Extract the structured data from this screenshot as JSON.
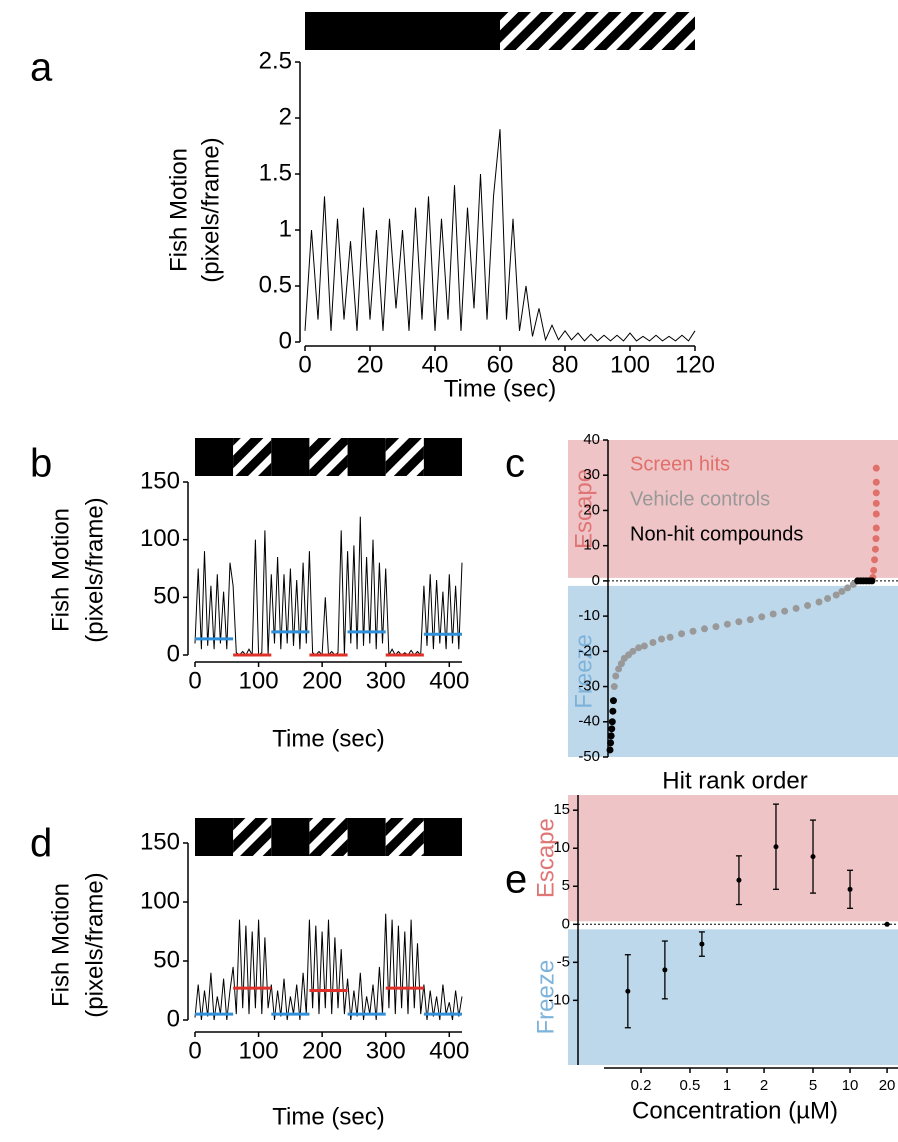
{
  "chart_data": [
    {
      "type": "line",
      "label": "a",
      "ylabel": [
        "Fish Motion",
        "(pixels/frame)"
      ],
      "xlabel": "Time (sec)",
      "color": "#000000",
      "xlim": [
        0,
        120
      ],
      "xticks": [
        0,
        20,
        40,
        60,
        80,
        100,
        120
      ],
      "ylim": [
        0,
        2.5
      ],
      "yticks": [
        0,
        0.5,
        1,
        1.5,
        2,
        2.5
      ],
      "stimulus": [
        {
          "x": [
            0,
            60
          ],
          "pattern": "solid"
        },
        {
          "x": [
            60,
            120
          ],
          "pattern": "striped"
        }
      ],
      "x": [
        0,
        2,
        4,
        6,
        8,
        10,
        12,
        14,
        16,
        18,
        20,
        22,
        24,
        26,
        28,
        30,
        32,
        34,
        36,
        38,
        40,
        42,
        44,
        46,
        48,
        50,
        52,
        54,
        56,
        58,
        60,
        62,
        64,
        66,
        68,
        70,
        72,
        74,
        76,
        78,
        80,
        82,
        84,
        86,
        88,
        90,
        92,
        94,
        96,
        98,
        100,
        102,
        104,
        106,
        108,
        110,
        112,
        114,
        116,
        118,
        120
      ],
      "values": [
        0.1,
        1.0,
        0.2,
        1.3,
        0.1,
        1.1,
        0.2,
        0.9,
        0.1,
        1.2,
        0.2,
        1.0,
        0.1,
        1.1,
        0.3,
        1.0,
        0.1,
        1.2,
        0.2,
        1.3,
        0.1,
        1.1,
        0.2,
        1.4,
        0.1,
        1.2,
        0.3,
        1.5,
        0.2,
        1.3,
        1.9,
        0.2,
        1.1,
        0.1,
        0.5,
        0.05,
        0.3,
        0.02,
        0.15,
        0.02,
        0.1,
        0.02,
        0.08,
        0.01,
        0.07,
        0.01,
        0.06,
        0.01,
        0.06,
        0.01,
        0.08,
        0.01,
        0.05,
        0.01,
        0.06,
        0.01,
        0.05,
        0.01,
        0.06,
        0.01,
        0.1
      ]
    },
    {
      "type": "line",
      "label": "b",
      "ylabel": [
        "Fish Motion",
        "(pixels/frame)"
      ],
      "xlabel": "Time (sec)",
      "color": "#000000",
      "xlim": [
        0,
        420
      ],
      "xticks": [
        0,
        100,
        200,
        300,
        400
      ],
      "ylim": [
        0,
        150
      ],
      "yticks": [
        0,
        50,
        100,
        150
      ],
      "stimulus": [
        {
          "x": [
            0,
            60
          ],
          "pattern": "solid"
        },
        {
          "x": [
            60,
            120
          ],
          "pattern": "striped"
        },
        {
          "x": [
            120,
            180
          ],
          "pattern": "solid"
        },
        {
          "x": [
            180,
            240
          ],
          "pattern": "striped"
        },
        {
          "x": [
            240,
            300
          ],
          "pattern": "solid"
        },
        {
          "x": [
            300,
            360
          ],
          "pattern": "striped"
        },
        {
          "x": [
            360,
            420
          ],
          "pattern": "solid"
        }
      ],
      "mean_lines": [
        {
          "x": [
            0,
            60
          ],
          "value": 14,
          "color": "#2f8fd8"
        },
        {
          "x": [
            60,
            120
          ],
          "value": 0,
          "color": "#e0302a"
        },
        {
          "x": [
            120,
            180
          ],
          "value": 20,
          "color": "#2f8fd8"
        },
        {
          "x": [
            180,
            240
          ],
          "value": 0,
          "color": "#e0302a"
        },
        {
          "x": [
            240,
            300
          ],
          "value": 20,
          "color": "#2f8fd8"
        },
        {
          "x": [
            300,
            360
          ],
          "value": 0,
          "color": "#e0302a"
        },
        {
          "x": [
            360,
            420
          ],
          "value": 18,
          "color": "#2f8fd8"
        }
      ],
      "x": [
        0,
        5,
        10,
        15,
        20,
        25,
        30,
        35,
        40,
        45,
        50,
        55,
        60,
        65,
        70,
        75,
        80,
        85,
        90,
        95,
        100,
        105,
        110,
        115,
        120,
        125,
        130,
        135,
        140,
        145,
        150,
        155,
        160,
        165,
        170,
        175,
        180,
        185,
        190,
        195,
        200,
        205,
        210,
        215,
        220,
        225,
        230,
        235,
        240,
        245,
        250,
        255,
        260,
        265,
        270,
        275,
        280,
        285,
        290,
        295,
        300,
        305,
        310,
        315,
        320,
        325,
        330,
        335,
        340,
        345,
        350,
        355,
        360,
        365,
        370,
        375,
        380,
        385,
        390,
        395,
        400,
        405,
        410,
        415,
        420
      ],
      "values": [
        10,
        75,
        5,
        90,
        8,
        60,
        5,
        70,
        10,
        55,
        5,
        80,
        60,
        2,
        0,
        3,
        0,
        5,
        0,
        100,
        0,
        2,
        108,
        0,
        70,
        10,
        85,
        5,
        70,
        10,
        75,
        8,
        65,
        5,
        80,
        10,
        90,
        2,
        0,
        3,
        0,
        50,
        0,
        3,
        0,
        2,
        108,
        0,
        90,
        10,
        95,
        5,
        120,
        8,
        85,
        10,
        100,
        5,
        80,
        10,
        75,
        0,
        5,
        0,
        3,
        0,
        2,
        0,
        4,
        0,
        3,
        0,
        60,
        8,
        70,
        5,
        65,
        10,
        55,
        5,
        70,
        10,
        60,
        5,
        80
      ]
    },
    {
      "type": "scatter",
      "label": "c",
      "xlabel": "Hit rank order",
      "legend": "upper left",
      "refline": 0,
      "xlim": [
        0,
        95
      ],
      "ylim": [
        -50,
        40
      ],
      "yticks": [
        -50,
        -40,
        -30,
        -20,
        -10,
        0,
        10,
        20,
        30,
        40
      ],
      "regions": [
        {
          "label": "Escape",
          "range": [
            0,
            40
          ],
          "color": "#efc4c6",
          "text_color": "#e07575"
        },
        {
          "label": "Freeze",
          "range": [
            -50,
            0
          ],
          "color": "#bdd8eb",
          "text_color": "#7db3da"
        }
      ],
      "series": [
        {
          "name": "Screen hits",
          "color": "#e0706a",
          "x": [
            91.8,
            92.1,
            92.4,
            92.7,
            92.9,
            93,
            93,
            93,
            93,
            93,
            93
          ],
          "values": [
            1,
            3,
            6,
            9,
            12,
            15,
            19,
            22,
            25,
            28,
            32
          ]
        },
        {
          "name": "Vehicle controls",
          "color": "#999999",
          "x": [
            1.5,
            2,
            3,
            4,
            5,
            6.5,
            8,
            10,
            12,
            15,
            18,
            21,
            25,
            29,
            33,
            37,
            41,
            45,
            49,
            53,
            57,
            61,
            65,
            69,
            73,
            76,
            79,
            81,
            83,
            85,
            86.5
          ],
          "values": [
            -30,
            -27,
            -25,
            -23.5,
            -22,
            -21,
            -20,
            -19,
            -18.5,
            -17.5,
            -16.5,
            -16,
            -15,
            -14.3,
            -13.6,
            -13,
            -12.3,
            -11.6,
            -11,
            -10.2,
            -9.4,
            -8.6,
            -7.8,
            -7,
            -6,
            -5,
            -4,
            -3,
            -2,
            -1,
            0
          ]
        },
        {
          "name": "Non-hit compounds",
          "color": "#000000",
          "x": [
            0,
            0.2,
            0.4,
            0.6,
            0.8,
            1,
            1.2,
            86.5,
            87.5,
            88.5,
            89.5,
            90.5,
            91.5
          ],
          "values": [
            -48,
            -46,
            -44,
            -42,
            -40,
            -37,
            -34,
            0,
            0,
            0,
            0,
            0,
            0
          ]
        }
      ]
    },
    {
      "type": "line",
      "label": "d",
      "ylabel": [
        "Fish Motion",
        "(pixels/frame)"
      ],
      "xlabel": "Time (sec)",
      "color": "#000000",
      "xlim": [
        0,
        420
      ],
      "xticks": [
        0,
        100,
        200,
        300,
        400
      ],
      "ylim": [
        0,
        150
      ],
      "yticks": [
        0,
        50,
        100,
        150
      ],
      "stimulus": [
        {
          "x": [
            0,
            60
          ],
          "pattern": "solid"
        },
        {
          "x": [
            60,
            120
          ],
          "pattern": "striped"
        },
        {
          "x": [
            120,
            180
          ],
          "pattern": "solid"
        },
        {
          "x": [
            180,
            240
          ],
          "pattern": "striped"
        },
        {
          "x": [
            240,
            300
          ],
          "pattern": "solid"
        },
        {
          "x": [
            300,
            360
          ],
          "pattern": "striped"
        },
        {
          "x": [
            360,
            420
          ],
          "pattern": "solid"
        }
      ],
      "mean_lines": [
        {
          "x": [
            0,
            60
          ],
          "value": 5,
          "color": "#2f8fd8"
        },
        {
          "x": [
            60,
            120
          ],
          "value": 27,
          "color": "#e0302a"
        },
        {
          "x": [
            120,
            180
          ],
          "value": 5,
          "color": "#2f8fd8"
        },
        {
          "x": [
            180,
            240
          ],
          "value": 25,
          "color": "#e0302a"
        },
        {
          "x": [
            240,
            300
          ],
          "value": 5,
          "color": "#2f8fd8"
        },
        {
          "x": [
            300,
            360
          ],
          "value": 27,
          "color": "#e0302a"
        },
        {
          "x": [
            360,
            420
          ],
          "value": 5,
          "color": "#2f8fd8"
        }
      ],
      "x": [
        0,
        5,
        10,
        15,
        20,
        25,
        30,
        35,
        40,
        45,
        50,
        55,
        60,
        65,
        70,
        75,
        80,
        85,
        90,
        95,
        100,
        105,
        110,
        115,
        120,
        125,
        130,
        135,
        140,
        145,
        150,
        155,
        160,
        165,
        170,
        175,
        180,
        185,
        190,
        195,
        200,
        205,
        210,
        215,
        220,
        225,
        230,
        235,
        240,
        245,
        250,
        255,
        260,
        265,
        270,
        275,
        280,
        285,
        290,
        295,
        300,
        305,
        310,
        315,
        320,
        325,
        330,
        335,
        340,
        345,
        350,
        355,
        360,
        365,
        370,
        375,
        380,
        385,
        390,
        395,
        400,
        405,
        410,
        415,
        420
      ],
      "values": [
        2,
        30,
        0,
        25,
        3,
        40,
        0,
        20,
        5,
        35,
        0,
        25,
        45,
        5,
        85,
        10,
        80,
        5,
        75,
        10,
        85,
        5,
        70,
        10,
        30,
        0,
        25,
        3,
        35,
        0,
        20,
        5,
        30,
        0,
        40,
        5,
        85,
        10,
        80,
        5,
        75,
        10,
        85,
        5,
        70,
        10,
        60,
        5,
        35,
        0,
        25,
        3,
        40,
        0,
        20,
        5,
        30,
        0,
        45,
        5,
        90,
        10,
        85,
        5,
        80,
        10,
        75,
        5,
        85,
        10,
        65,
        5,
        30,
        0,
        25,
        3,
        20,
        0,
        30,
        5,
        15,
        0,
        25,
        3,
        20
      ]
    },
    {
      "type": "errorbar",
      "label": "e",
      "xlabel": "Concentration (µM)",
      "xscale": "log",
      "refline": 0,
      "xlim": [
        0.1,
        25
      ],
      "xticks": [
        0.2,
        0.5,
        1,
        2,
        5,
        10,
        20
      ],
      "ylim": [
        -18.5,
        17
      ],
      "yticks": [
        -10,
        -5,
        0,
        5,
        10,
        15
      ],
      "regions": [
        {
          "label": "Escape",
          "range": [
            0,
            17
          ],
          "color": "#efc4c6",
          "text_color": "#e07575"
        },
        {
          "label": "Freeze",
          "range": [
            -18.5,
            0
          ],
          "color": "#bdd8eb",
          "text_color": "#7db3da"
        }
      ],
      "color": "#000000",
      "x": [
        0.15625,
        0.3125,
        0.625,
        1.25,
        2.5,
        5,
        10,
        20
      ],
      "values": [
        -8.8,
        -6,
        -2.6,
        5.8,
        10.2,
        8.9,
        4.6,
        0
      ],
      "errors": [
        4.8,
        3.8,
        1.6,
        3.2,
        5.6,
        4.8,
        2.5,
        0
      ]
    }
  ]
}
